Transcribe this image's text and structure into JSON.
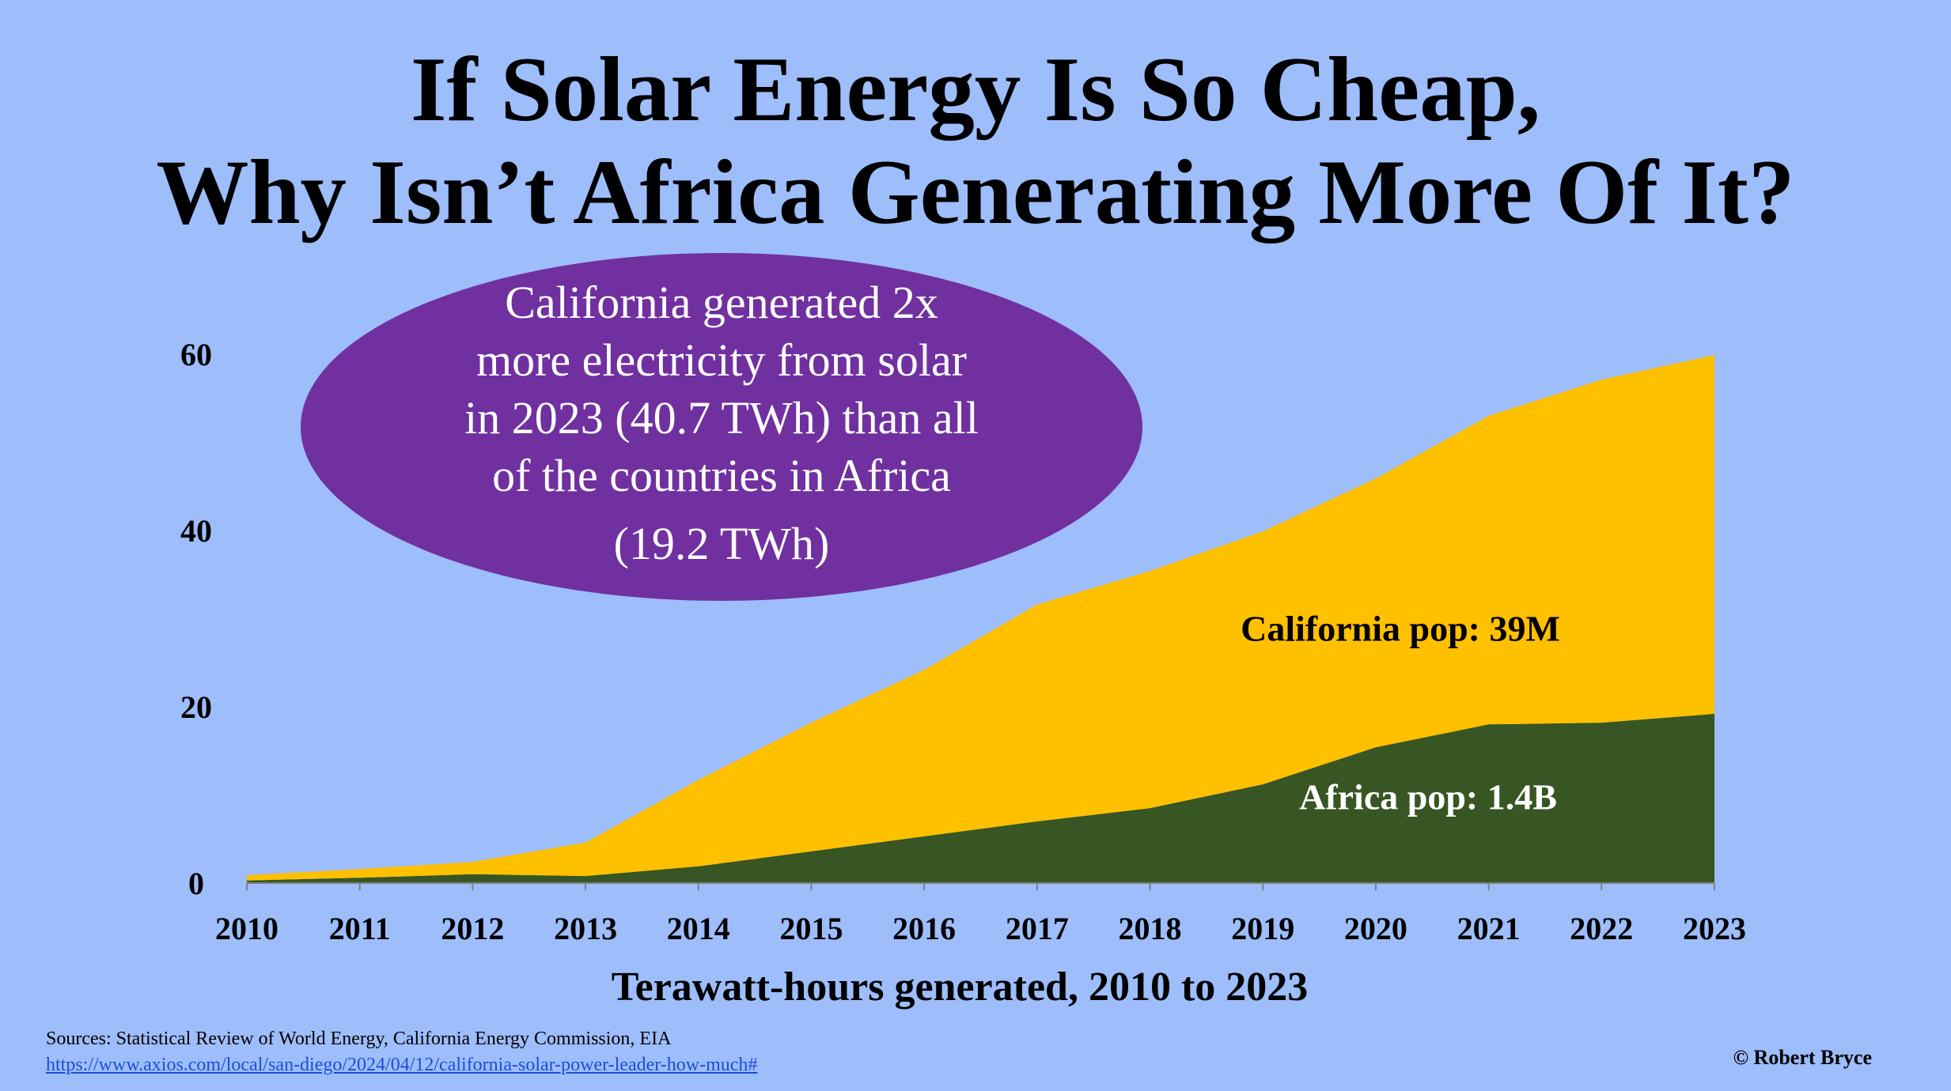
{
  "title_line1": "If Solar Energy Is So Cheap,",
  "title_line2": "Why Isn’t Africa Generating More Of It?",
  "callout": {
    "lines": [
      "California generated 2x",
      "more electricity from solar",
      "in 2023 (40.7 TWh) than all",
      "of the countries in Africa",
      "(19.2 TWh)"
    ],
    "color": "#7030a0"
  },
  "chart_data": {
    "type": "area",
    "stacked": true,
    "categories": [
      "2010",
      "2011",
      "2012",
      "2013",
      "2014",
      "2015",
      "2016",
      "2017",
      "2018",
      "2019",
      "2020",
      "2021",
      "2022",
      "2023"
    ],
    "series": [
      {
        "name": "Africa",
        "label": "Africa pop: 1.4B",
        "color": "#375623",
        "label_color": "#ffffff",
        "values": [
          0.3,
          0.6,
          1.0,
          0.8,
          1.9,
          3.6,
          5.3,
          7.0,
          8.5,
          11.2,
          15.4,
          18.0,
          18.2,
          19.2
        ]
      },
      {
        "name": "California",
        "label": "California pop: 39M",
        "color": "#ffc000",
        "label_color": "#000000",
        "values": [
          0.6,
          1.0,
          1.4,
          3.8,
          9.8,
          14.6,
          18.9,
          24.6,
          26.9,
          28.7,
          30.5,
          35.0,
          38.9,
          40.7
        ]
      }
    ],
    "yticks": [
      0,
      20,
      40,
      60
    ],
    "ylim": [
      0,
      60
    ],
    "xlabel": "Terawatt-hours generated, 2010 to 2023",
    "ylabel": "",
    "grid": false
  },
  "sources": {
    "text": "Sources: Statistical Review of World Energy, California Energy Commission, EIA",
    "link": "https://www.axios.com/local/san-diego/2024/04/12/california-solar-power-leader-how-much#"
  },
  "credit": "© Robert Bryce"
}
